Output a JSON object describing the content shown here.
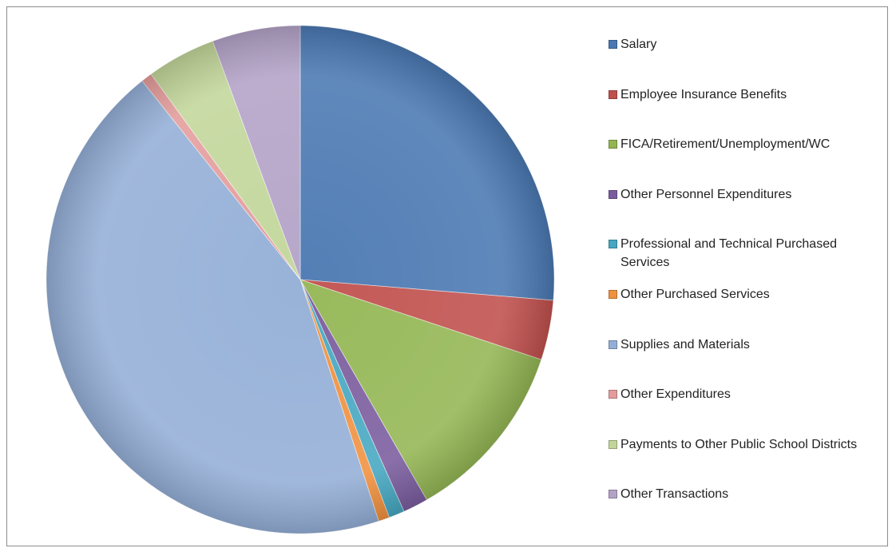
{
  "chart_data": {
    "type": "pie",
    "categories": [
      "Salary",
      "Employee Insurance Benefits",
      "FICA/Retirement/Unemployment/WC",
      "Other Personnel Expenditures",
      "Professional and Technical Purchased Services",
      "Other Purchased Services",
      "Supplies and Materials",
      "Other Expenditures",
      "Payments to Other Public School Districts",
      "Other Transactions"
    ],
    "values": [
      26.3,
      3.8,
      11.6,
      1.6,
      1.0,
      0.7,
      44.3,
      0.7,
      4.4,
      5.6
    ],
    "colors": [
      "#4a78b2",
      "#c0504d",
      "#93b653",
      "#7a5c9e",
      "#45a7c1",
      "#f0903e",
      "#93aed6",
      "#e39c9b",
      "#c2d69a",
      "#b3a2c7"
    ],
    "legend": "right"
  }
}
